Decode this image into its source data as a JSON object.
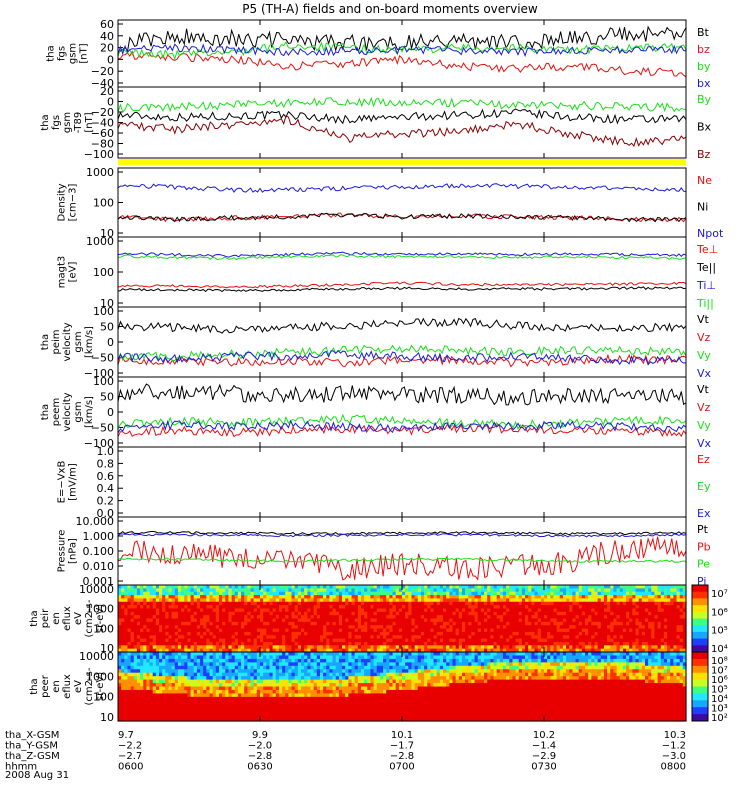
{
  "title": "P5 (TH-A) fields and on-board moments overview",
  "colors": {
    "black": "#000000",
    "red": "#e81010",
    "green": "#19e019",
    "blue": "#1a1ae0",
    "darkred": "#8b0000",
    "yellow": "#ffff00"
  },
  "chart_data": [
    {
      "type": "line",
      "ylabel": [
        "tha",
        "fgs",
        "gsm",
        "[nT]"
      ],
      "yticks": [
        "60",
        "40",
        "20",
        "0",
        "−20",
        "−40"
      ],
      "series": [
        {
          "name": "Bt",
          "color": "black",
          "profile": [
            20,
            40,
            35,
            30,
            25,
            28,
            30,
            25,
            35,
            45,
            45
          ]
        },
        {
          "name": "bz",
          "color": "red",
          "profile": [
            0,
            -5,
            -10,
            -25,
            -20,
            -10,
            -25,
            -30,
            -25,
            -35,
            -40
          ]
        },
        {
          "name": "by",
          "color": "green",
          "profile": [
            5,
            0,
            5,
            20,
            15,
            10,
            15,
            15,
            10,
            15,
            15
          ]
        },
        {
          "name": "bx",
          "color": "blue",
          "profile": [
            10,
            15,
            10,
            5,
            8,
            10,
            8,
            5,
            10,
            10,
            10
          ]
        }
      ]
    },
    {
      "type": "line",
      "ylabel": [
        "tha",
        "fgs",
        "gsm",
        "-T89",
        "[nT]"
      ],
      "yticks": [
        "20",
        "0",
        "−20",
        "−40",
        "−60",
        "−80",
        "−100"
      ],
      "series": [
        {
          "name": "By",
          "color": "green",
          "profile": [
            5,
            8,
            10,
            15,
            18,
            15,
            15,
            10,
            10,
            8,
            5
          ]
        },
        {
          "name": "Bx",
          "color": "black",
          "profile": [
            -10,
            -15,
            -12,
            -10,
            -20,
            -15,
            -10,
            -5,
            -15,
            -20,
            -20
          ]
        },
        {
          "name": "Bz",
          "color": "darkred",
          "profile": [
            -30,
            -40,
            -30,
            -20,
            -60,
            -50,
            -45,
            -30,
            -50,
            -70,
            -60
          ]
        }
      ]
    },
    {
      "type": "line",
      "ylabel": [
        "Density",
        "[cm−3]"
      ],
      "yticks": [
        "1000",
        "100",
        "10"
      ],
      "log_scale": true,
      "series": [
        {
          "name": "Ne",
          "color": "red",
          "profile": [
            50,
            45,
            48,
            50,
            55,
            50,
            52,
            50,
            48,
            45,
            45
          ]
        },
        {
          "name": "Ni",
          "color": "black",
          "profile": [
            50,
            45,
            48,
            50,
            55,
            50,
            52,
            50,
            48,
            45,
            45
          ]
        },
        {
          "name": "Npot",
          "color": "blue",
          "profile": [
            180,
            170,
            150,
            150,
            160,
            170,
            180,
            175,
            170,
            160,
            150
          ]
        }
      ]
    },
    {
      "type": "line",
      "ylabel": [
        "magt3",
        "[eV]"
      ],
      "yticks": [
        "1000",
        "100",
        "10"
      ],
      "log_scale": true,
      "series": [
        {
          "name": "Te⊥",
          "color": "red",
          "profile": [
            20,
            20,
            18,
            20,
            22,
            25,
            22,
            22,
            22,
            23,
            25
          ]
        },
        {
          "name": "Te||",
          "color": "black",
          "profile": [
            15,
            15,
            14,
            15,
            16,
            17,
            16,
            16,
            16,
            17,
            17
          ]
        },
        {
          "name": "Ti⊥",
          "color": "blue",
          "profile": [
            220,
            200,
            180,
            200,
            220,
            200,
            210,
            200,
            210,
            200,
            190
          ]
        },
        {
          "name": "Ti||",
          "color": "green",
          "profile": [
            180,
            160,
            150,
            170,
            180,
            170,
            170,
            160,
            170,
            160,
            150
          ]
        }
      ]
    },
    {
      "type": "line",
      "ylabel": [
        "tha",
        "peim",
        "velocity",
        "gsm",
        "[km/s]"
      ],
      "yticks": [
        "100",
        "50",
        "0",
        "−50",
        "−100"
      ],
      "series": [
        {
          "name": "Vt",
          "color": "black",
          "profile": [
            55,
            50,
            45,
            50,
            55,
            60,
            65,
            55,
            50,
            50,
            50
          ]
        },
        {
          "name": "Vz",
          "color": "red",
          "profile": [
            -30,
            -30,
            -35,
            -30,
            -35,
            -30,
            -30,
            -35,
            -30,
            -25,
            -30
          ]
        },
        {
          "name": "Vy",
          "color": "green",
          "profile": [
            -20,
            -20,
            -15,
            -10,
            -5,
            0,
            -5,
            -10,
            -5,
            -5,
            -10
          ]
        },
        {
          "name": "Vx",
          "color": "blue",
          "profile": [
            -20,
            -25,
            -20,
            -20,
            -15,
            -20,
            -25,
            -20,
            -25,
            -30,
            -30
          ]
        }
      ]
    },
    {
      "type": "line",
      "ylabel": [
        "tha",
        "peem",
        "velocity",
        "gsm",
        "[km/s]"
      ],
      "yticks": [
        "100",
        "50",
        "0",
        "−50",
        "−100"
      ],
      "series": [
        {
          "name": "Vt",
          "color": "black",
          "profile": [
            60,
            65,
            60,
            55,
            60,
            55,
            55,
            50,
            55,
            55,
            50
          ]
        },
        {
          "name": "Vz",
          "color": "red",
          "profile": [
            -40,
            -35,
            -40,
            -35,
            -30,
            -35,
            -30,
            -30,
            -35,
            -35,
            -40
          ]
        },
        {
          "name": "Vy",
          "color": "green",
          "profile": [
            -20,
            -10,
            -15,
            -10,
            -5,
            -10,
            -15,
            -20,
            -15,
            -10,
            -10
          ]
        },
        {
          "name": "Vx",
          "color": "blue",
          "profile": [
            -30,
            -20,
            -25,
            -20,
            -25,
            -30,
            -20,
            -25,
            -20,
            -25,
            -30
          ]
        }
      ]
    },
    {
      "type": "line",
      "ylabel": [
        "E=−VxB",
        "[mV/m]"
      ],
      "yticks": [
        "1.0",
        "0.8",
        "0.6",
        "0.4",
        "0.2",
        "0.0"
      ],
      "series": [
        {
          "name": "Ez",
          "color": "red",
          "profile": []
        },
        {
          "name": "Ey",
          "color": "green",
          "profile": []
        },
        {
          "name": "Ex",
          "color": "blue",
          "profile": []
        }
      ]
    },
    {
      "type": "line",
      "ylabel": [
        "Pressure",
        "[nPa]"
      ],
      "yticks": [
        "10.000",
        "1.000",
        "0.100",
        "0.010",
        "0.001"
      ],
      "log_scale": true,
      "series": [
        {
          "name": "Pt",
          "color": "black",
          "profile": [
            1.2,
            1.2,
            1.15,
            1.1,
            1.1,
            1.15,
            1.2,
            1.15,
            1.1,
            1.1,
            1.2
          ]
        },
        {
          "name": "Pb",
          "color": "red",
          "profile": [
            0.3,
            0.2,
            0.15,
            0.1,
            0.05,
            0.08,
            0.05,
            0.06,
            0.1,
            0.3,
            0.4
          ]
        },
        {
          "name": "Pe",
          "color": "green",
          "profile": [
            0.12,
            0.12,
            0.11,
            0.1,
            0.11,
            0.12,
            0.12,
            0.11,
            0.1,
            0.1,
            0.1
          ]
        },
        {
          "name": "Pi",
          "color": "blue",
          "profile": [
            1.0,
            1.0,
            0.95,
            0.9,
            0.95,
            1.0,
            1.0,
            0.95,
            0.9,
            0.9,
            1.0
          ]
        }
      ]
    },
    {
      "type": "heatmap",
      "ylabel": [
        "tha",
        "peir",
        "en",
        "eflux",
        "eV",
        "(cm2-s-",
        "sr-eV)"
      ],
      "yticks": [
        "10000",
        "1000",
        "100",
        "10"
      ],
      "colorbar_ticks": [
        "10⁷",
        "10⁶",
        "10⁵",
        "10⁴"
      ]
    },
    {
      "type": "heatmap",
      "ylabel": [
        "tha",
        "peer",
        "en",
        "eflux",
        "eV",
        "(cm2-s-",
        "sr-eV)"
      ],
      "yticks": [
        "10000",
        "1000",
        "100",
        "10"
      ],
      "colorbar_ticks": [
        "10⁸",
        "10⁷",
        "10⁶",
        "10⁵",
        "10⁴",
        "10³",
        "10²"
      ]
    }
  ],
  "x_axis": {
    "rows": [
      {
        "label": "tha_X-GSM",
        "values": [
          "9.7",
          "9.9",
          "10.1",
          "10.2",
          "10.3"
        ]
      },
      {
        "label": "tha_Y-GSM",
        "values": [
          "−2.2",
          "−2.0",
          "−1.7",
          "−1.4",
          "−1.2"
        ]
      },
      {
        "label": "tha_Z-GSM",
        "values": [
          "−2.7",
          "−2.8",
          "−2.8",
          "−2.9",
          "−3.0"
        ]
      },
      {
        "label": "hhmm",
        "values": [
          "0600",
          "0630",
          "0700",
          "0730",
          "0800"
        ]
      }
    ],
    "date": "2008 Aug 31"
  }
}
